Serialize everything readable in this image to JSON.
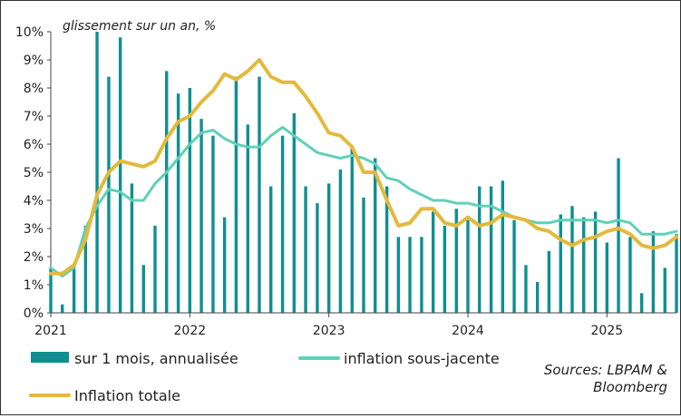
{
  "chart_data": {
    "type": "bar",
    "subtitle": "glissement sur un an, %",
    "source": [
      "Sources: LBPAM &",
      "Bloomberg"
    ],
    "yticks": [
      "0%",
      "1%",
      "2%",
      "3%",
      "4%",
      "5%",
      "6%",
      "7%",
      "8%",
      "9%",
      "10%"
    ],
    "ylim": [
      0,
      10
    ],
    "xticks": [
      {
        "label": "2021",
        "x": 2021.0
      },
      {
        "label": "2022",
        "x": 2022.0
      },
      {
        "label": "2023",
        "x": 2023.0
      },
      {
        "label": "2024",
        "x": 2024.0
      },
      {
        "label": "2025",
        "x": 2025.0
      }
    ],
    "xlim": [
      2021.0,
      2025.5
    ],
    "grid": false,
    "legend_position": "bottom",
    "colors": {
      "bars": "#0f8f91",
      "core": "#5fd1b7",
      "total": "#e4b93c"
    },
    "series": [
      {
        "name": "sur 1 mois, annualisée",
        "kind": "bar",
        "x": [
          2021.0,
          2021.083,
          2021.167,
          2021.25,
          2021.333,
          2021.417,
          2021.5,
          2021.583,
          2021.667,
          2021.75,
          2021.833,
          2021.917,
          2022.0,
          2022.083,
          2022.167,
          2022.25,
          2022.333,
          2022.417,
          2022.5,
          2022.583,
          2022.667,
          2022.75,
          2022.833,
          2022.917,
          2023.0,
          2023.083,
          2023.167,
          2023.25,
          2023.333,
          2023.417,
          2023.5,
          2023.583,
          2023.667,
          2023.75,
          2023.833,
          2023.917,
          2024.0,
          2024.083,
          2024.167,
          2024.25,
          2024.333,
          2024.417,
          2024.5,
          2024.583,
          2024.667,
          2024.75,
          2024.833,
          2024.917,
          2025.0,
          2025.083,
          2025.167,
          2025.25,
          2025.333,
          2025.417,
          2025.5
        ],
        "values": [
          1.6,
          0.3,
          1.6,
          3.1,
          10.0,
          8.4,
          9.8,
          4.6,
          1.7,
          3.1,
          8.6,
          7.8,
          8.0,
          6.9,
          6.3,
          3.4,
          8.4,
          6.7,
          8.4,
          4.5,
          6.3,
          7.1,
          4.5,
          3.9,
          4.6,
          5.1,
          5.9,
          4.1,
          5.5,
          4.5,
          2.7,
          2.7,
          2.7,
          3.6,
          3.1,
          3.7,
          3.3,
          4.5,
          4.5,
          4.7,
          3.3,
          1.7,
          1.1,
          2.2,
          3.5,
          3.8,
          3.4,
          3.6,
          2.5,
          5.5,
          2.7,
          0.7,
          2.9,
          1.6,
          2.8
        ]
      },
      {
        "name": "inflation sous-jacente",
        "kind": "line",
        "x": [
          2021.0,
          2021.083,
          2021.167,
          2021.25,
          2021.333,
          2021.417,
          2021.5,
          2021.583,
          2021.667,
          2021.75,
          2021.833,
          2021.917,
          2022.0,
          2022.083,
          2022.167,
          2022.25,
          2022.333,
          2022.417,
          2022.5,
          2022.583,
          2022.667,
          2022.75,
          2022.833,
          2022.917,
          2023.0,
          2023.083,
          2023.167,
          2023.25,
          2023.333,
          2023.417,
          2023.5,
          2023.583,
          2023.667,
          2023.75,
          2023.833,
          2023.917,
          2024.0,
          2024.083,
          2024.167,
          2024.25,
          2024.333,
          2024.417,
          2024.5,
          2024.583,
          2024.667,
          2024.75,
          2024.833,
          2024.917,
          2025.0,
          2025.083,
          2025.167,
          2025.25,
          2025.333,
          2025.417,
          2025.5
        ],
        "values": [
          1.6,
          1.3,
          1.6,
          3.0,
          3.8,
          4.4,
          4.3,
          4.0,
          4.0,
          4.6,
          5.0,
          5.5,
          6.0,
          6.4,
          6.5,
          6.2,
          6.0,
          5.9,
          5.9,
          6.3,
          6.6,
          6.3,
          6.0,
          5.7,
          5.6,
          5.5,
          5.6,
          5.5,
          5.3,
          4.8,
          4.7,
          4.4,
          4.2,
          4.0,
          4.0,
          3.9,
          3.9,
          3.8,
          3.8,
          3.6,
          3.4,
          3.3,
          3.2,
          3.2,
          3.3,
          3.3,
          3.3,
          3.3,
          3.2,
          3.3,
          3.2,
          2.8,
          2.8,
          2.8,
          2.9
        ]
      },
      {
        "name": "Inflation totale",
        "kind": "line",
        "x": [
          2021.0,
          2021.083,
          2021.167,
          2021.25,
          2021.333,
          2021.417,
          2021.5,
          2021.583,
          2021.667,
          2021.75,
          2021.833,
          2021.917,
          2022.0,
          2022.083,
          2022.167,
          2022.25,
          2022.333,
          2022.417,
          2022.5,
          2022.583,
          2022.667,
          2022.75,
          2022.833,
          2022.917,
          2023.0,
          2023.083,
          2023.167,
          2023.25,
          2023.333,
          2023.417,
          2023.5,
          2023.583,
          2023.667,
          2023.75,
          2023.833,
          2023.917,
          2024.0,
          2024.083,
          2024.167,
          2024.25,
          2024.333,
          2024.417,
          2024.5,
          2024.583,
          2024.667,
          2024.75,
          2024.833,
          2024.917,
          2025.0,
          2025.083,
          2025.167,
          2025.25,
          2025.333,
          2025.417,
          2025.5
        ],
        "values": [
          1.4,
          1.4,
          1.7,
          2.6,
          4.2,
          5.0,
          5.4,
          5.3,
          5.2,
          5.4,
          6.2,
          6.8,
          7.0,
          7.5,
          7.9,
          8.5,
          8.3,
          8.6,
          9.0,
          8.4,
          8.2,
          8.2,
          7.7,
          7.1,
          6.4,
          6.3,
          5.9,
          5.0,
          5.0,
          4.0,
          3.1,
          3.2,
          3.7,
          3.7,
          3.2,
          3.1,
          3.4,
          3.1,
          3.2,
          3.5,
          3.4,
          3.3,
          3.0,
          2.9,
          2.6,
          2.4,
          2.6,
          2.7,
          2.9,
          3.0,
          2.8,
          2.4,
          2.3,
          2.4,
          2.7
        ]
      }
    ]
  }
}
